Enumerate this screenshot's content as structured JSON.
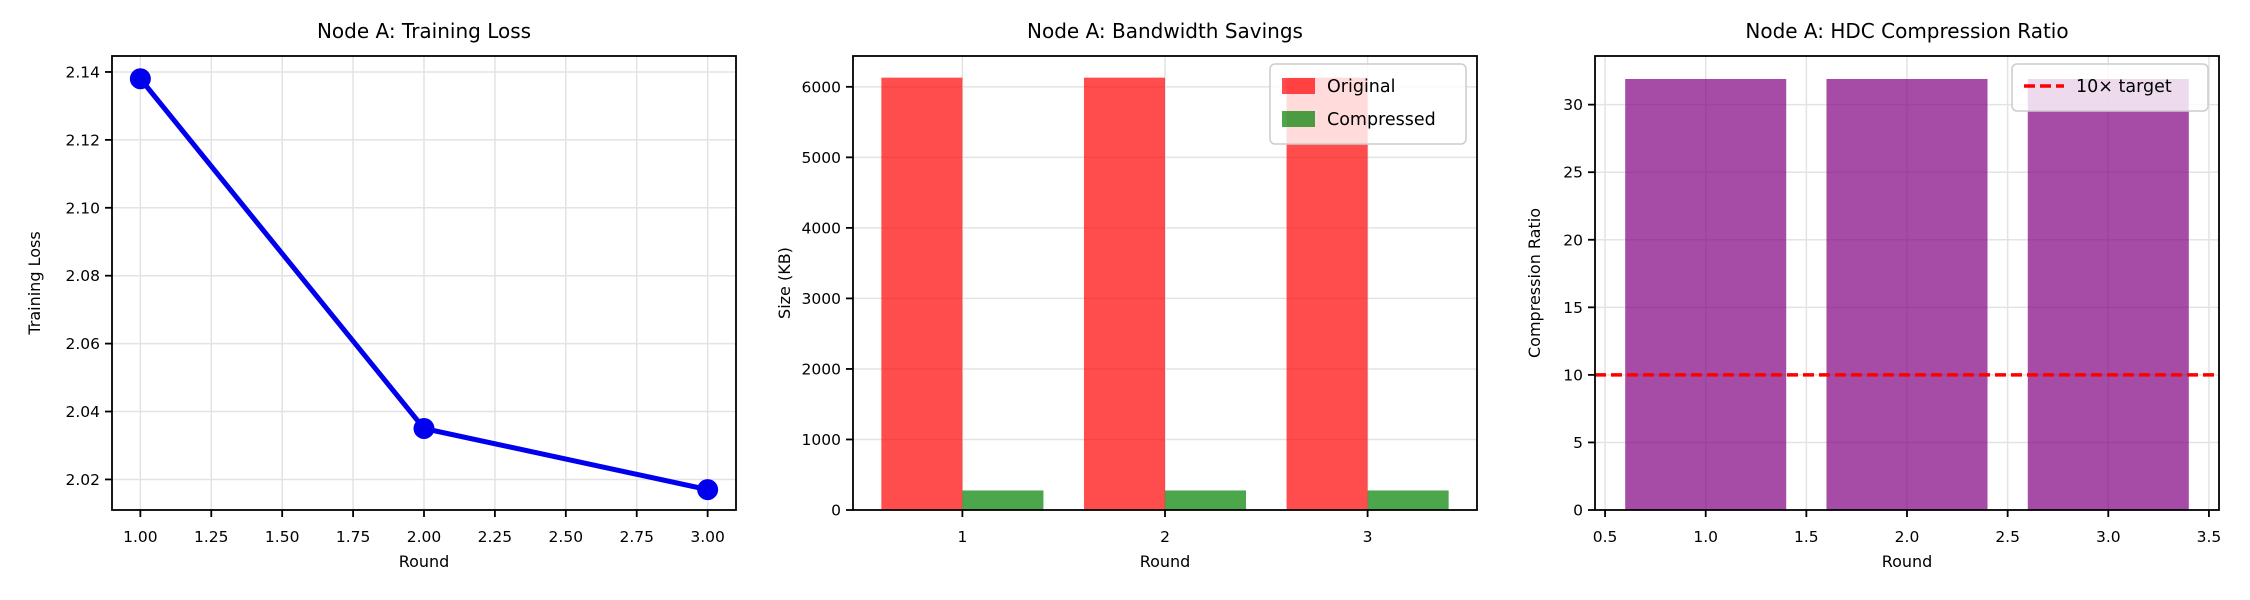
{
  "figure": {
    "background": "#ffffff",
    "grid_color": "#e3e3e3",
    "spine_color": "#000000"
  },
  "chart_data": [
    {
      "type": "line",
      "title": "Node A: Training Loss",
      "xlabel": "Round",
      "ylabel": "Training Loss",
      "x": [
        1,
        2,
        3
      ],
      "y": [
        2.138,
        2.035,
        2.017
      ],
      "line_color": "#0000ee",
      "marker": "circle",
      "grid": true,
      "xlim": [
        0.9,
        3.1
      ],
      "ylim": [
        2.011,
        2.1447
      ],
      "xticks": [
        1.0,
        1.25,
        1.5,
        1.75,
        2.0,
        2.25,
        2.5,
        2.75,
        3.0
      ],
      "xtick_labels": [
        "1.00",
        "1.25",
        "1.50",
        "1.75",
        "2.00",
        "2.25",
        "2.50",
        "2.75",
        "3.00"
      ],
      "yticks": [
        2.02,
        2.04,
        2.06,
        2.08,
        2.1,
        2.12,
        2.14
      ],
      "ytick_labels": [
        "2.02",
        "2.04",
        "2.06",
        "2.08",
        "2.10",
        "2.12",
        "2.14"
      ]
    },
    {
      "type": "grouped_bar",
      "title": "Node A: Bandwidth Savings",
      "xlabel": "Round",
      "ylabel": "Size (KB)",
      "categories": [
        "1",
        "2",
        "3"
      ],
      "category_x": [
        1,
        2,
        3
      ],
      "series": [
        {
          "name": "Original",
          "color": "#ff0000",
          "alpha": 0.7,
          "values": [
            6130,
            6130,
            6130
          ]
        },
        {
          "name": "Compressed",
          "color": "#008000",
          "alpha": 0.7,
          "values": [
            277,
            277,
            277
          ]
        }
      ],
      "bar_width": 0.4,
      "grid": true,
      "legend_position": "upper right",
      "xlim": [
        0.46,
        3.54
      ],
      "ylim": [
        0,
        6437
      ],
      "yticks": [
        0,
        1000,
        2000,
        3000,
        4000,
        5000,
        6000
      ],
      "ytick_labels": [
        "0",
        "1000",
        "2000",
        "3000",
        "4000",
        "5000",
        "6000"
      ]
    },
    {
      "type": "bar",
      "title": "Node A: HDC Compression Ratio",
      "xlabel": "Round",
      "ylabel": "Compression Ratio",
      "x": [
        1,
        2,
        3
      ],
      "values": [
        31.9,
        31.9,
        31.9
      ],
      "bar_color": "#800080",
      "alpha": 0.7,
      "bar_width": 0.8,
      "grid": true,
      "hline": {
        "y": 10,
        "color": "#ff0000",
        "style": "dashed",
        "label": "10× target"
      },
      "legend_position": "upper right",
      "xlim": [
        0.45,
        3.55
      ],
      "ylim": [
        0,
        33.6
      ],
      "xticks": [
        0.5,
        1.0,
        1.5,
        2.0,
        2.5,
        3.0,
        3.5
      ],
      "xtick_labels": [
        "0.5",
        "1.0",
        "1.5",
        "2.0",
        "2.5",
        "3.0",
        "3.5"
      ],
      "yticks": [
        0,
        5,
        10,
        15,
        20,
        25,
        30
      ],
      "ytick_labels": [
        "0",
        "5",
        "10",
        "15",
        "20",
        "25",
        "30"
      ]
    }
  ]
}
